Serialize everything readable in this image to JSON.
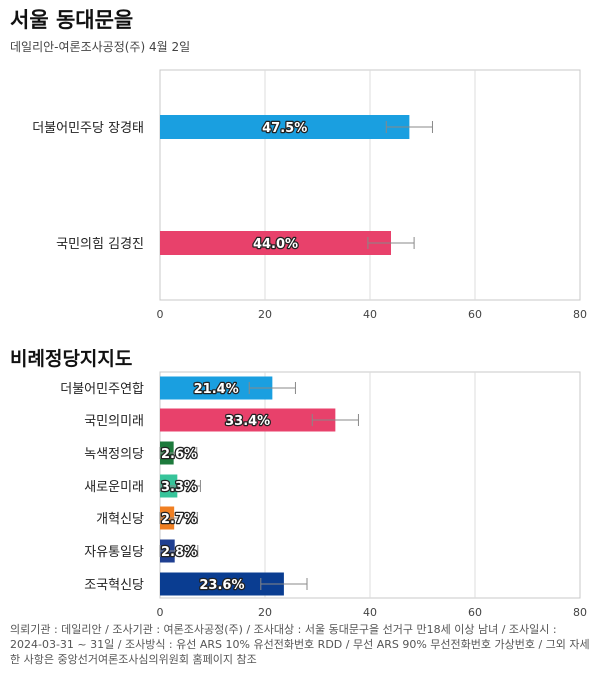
{
  "header": {
    "title": "서울 동대문을",
    "subtitle": "데일리안-여론조사공정(주) 4월 2일"
  },
  "section2": {
    "title": "비례정당지지도"
  },
  "footer": {
    "text": "의뢰기관 : 데일리안 / 조사기관 : 여론조사공정(주) / 조사대상 : 서울 동대문구을 선거구 만18세 이상 남녀 / 조사일시 : 2024-03-31 ~ 31일 / 조사방식 : 유선 ARS 10% 유선전화번호 RDD / 무선 ARS 90% 무선전화번호 가상번호 / 그외 자세한 사항은 중앙선거여론조사심의위원회 홈페이지 참조"
  },
  "chart_data": [
    {
      "type": "bar",
      "orientation": "horizontal",
      "title": "서울 동대문을",
      "categories": [
        "더불어민주당 장경태",
        "국민의힘 김경진"
      ],
      "values": [
        47.5,
        44.0
      ],
      "value_labels": [
        "47.5%",
        "44.0%"
      ],
      "error_margin": [
        4.4,
        4.4
      ],
      "colors": [
        "#1a9fe0",
        "#e8416b"
      ],
      "xlim": [
        0,
        80
      ],
      "xticks": [
        0,
        20,
        40,
        60,
        80
      ],
      "grid": true
    },
    {
      "type": "bar",
      "orientation": "horizontal",
      "title": "비례정당지지도",
      "categories": [
        "더불어민주연합",
        "국민의미래",
        "녹색정의당",
        "새로운미래",
        "개혁신당",
        "자유통일당",
        "조국혁신당"
      ],
      "values": [
        21.4,
        33.4,
        2.6,
        3.3,
        2.7,
        2.8,
        23.6
      ],
      "value_labels": [
        "21.4%",
        "33.4%",
        "2.6%",
        "3.3%",
        "2.7%",
        "2.8%",
        "23.6%"
      ],
      "error_margin": [
        4.4,
        4.4,
        4.4,
        4.4,
        4.4,
        4.4,
        4.4
      ],
      "colors": [
        "#1a9fe0",
        "#e8416b",
        "#1d7a3c",
        "#37c49a",
        "#f07f22",
        "#1f3f91",
        "#0a3d91"
      ],
      "xlim": [
        0,
        80
      ],
      "xticks": [
        0,
        20,
        40,
        60,
        80
      ],
      "grid": true
    }
  ]
}
